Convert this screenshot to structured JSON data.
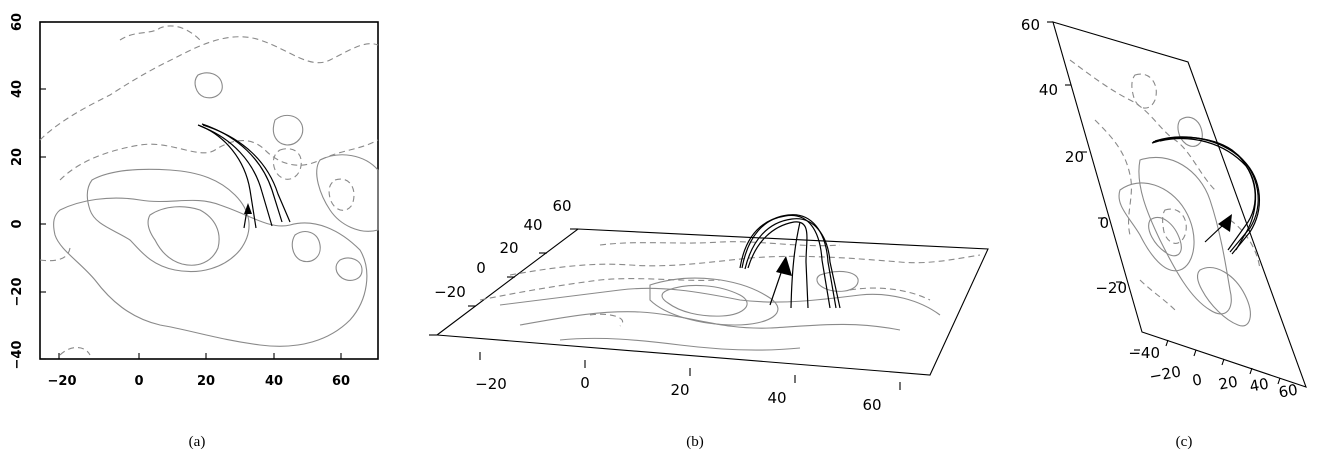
{
  "panels": [
    {
      "caption": "(a)",
      "x_ticks": [
        "−20",
        "0",
        "20",
        "40",
        "60"
      ],
      "y_ticks": [
        "60",
        "40",
        "20",
        "0",
        "−20",
        "−40"
      ]
    },
    {
      "caption": "(b)",
      "x_ticks": [
        "−20",
        "0",
        "20",
        "40",
        "60"
      ],
      "y_ticks": [
        "60",
        "40",
        "20",
        "0",
        "−20"
      ]
    },
    {
      "caption": "(c)",
      "x_ticks": [
        "−20",
        "0",
        "20",
        "40",
        "60"
      ],
      "y_ticks": [
        "60",
        "40",
        "20",
        "0",
        "−20",
        "−40"
      ]
    }
  ],
  "legend": {
    "positive_contour_color": "#8a8a8a",
    "negative_contour_style": "dashed",
    "field_line_color": "#000000"
  }
}
